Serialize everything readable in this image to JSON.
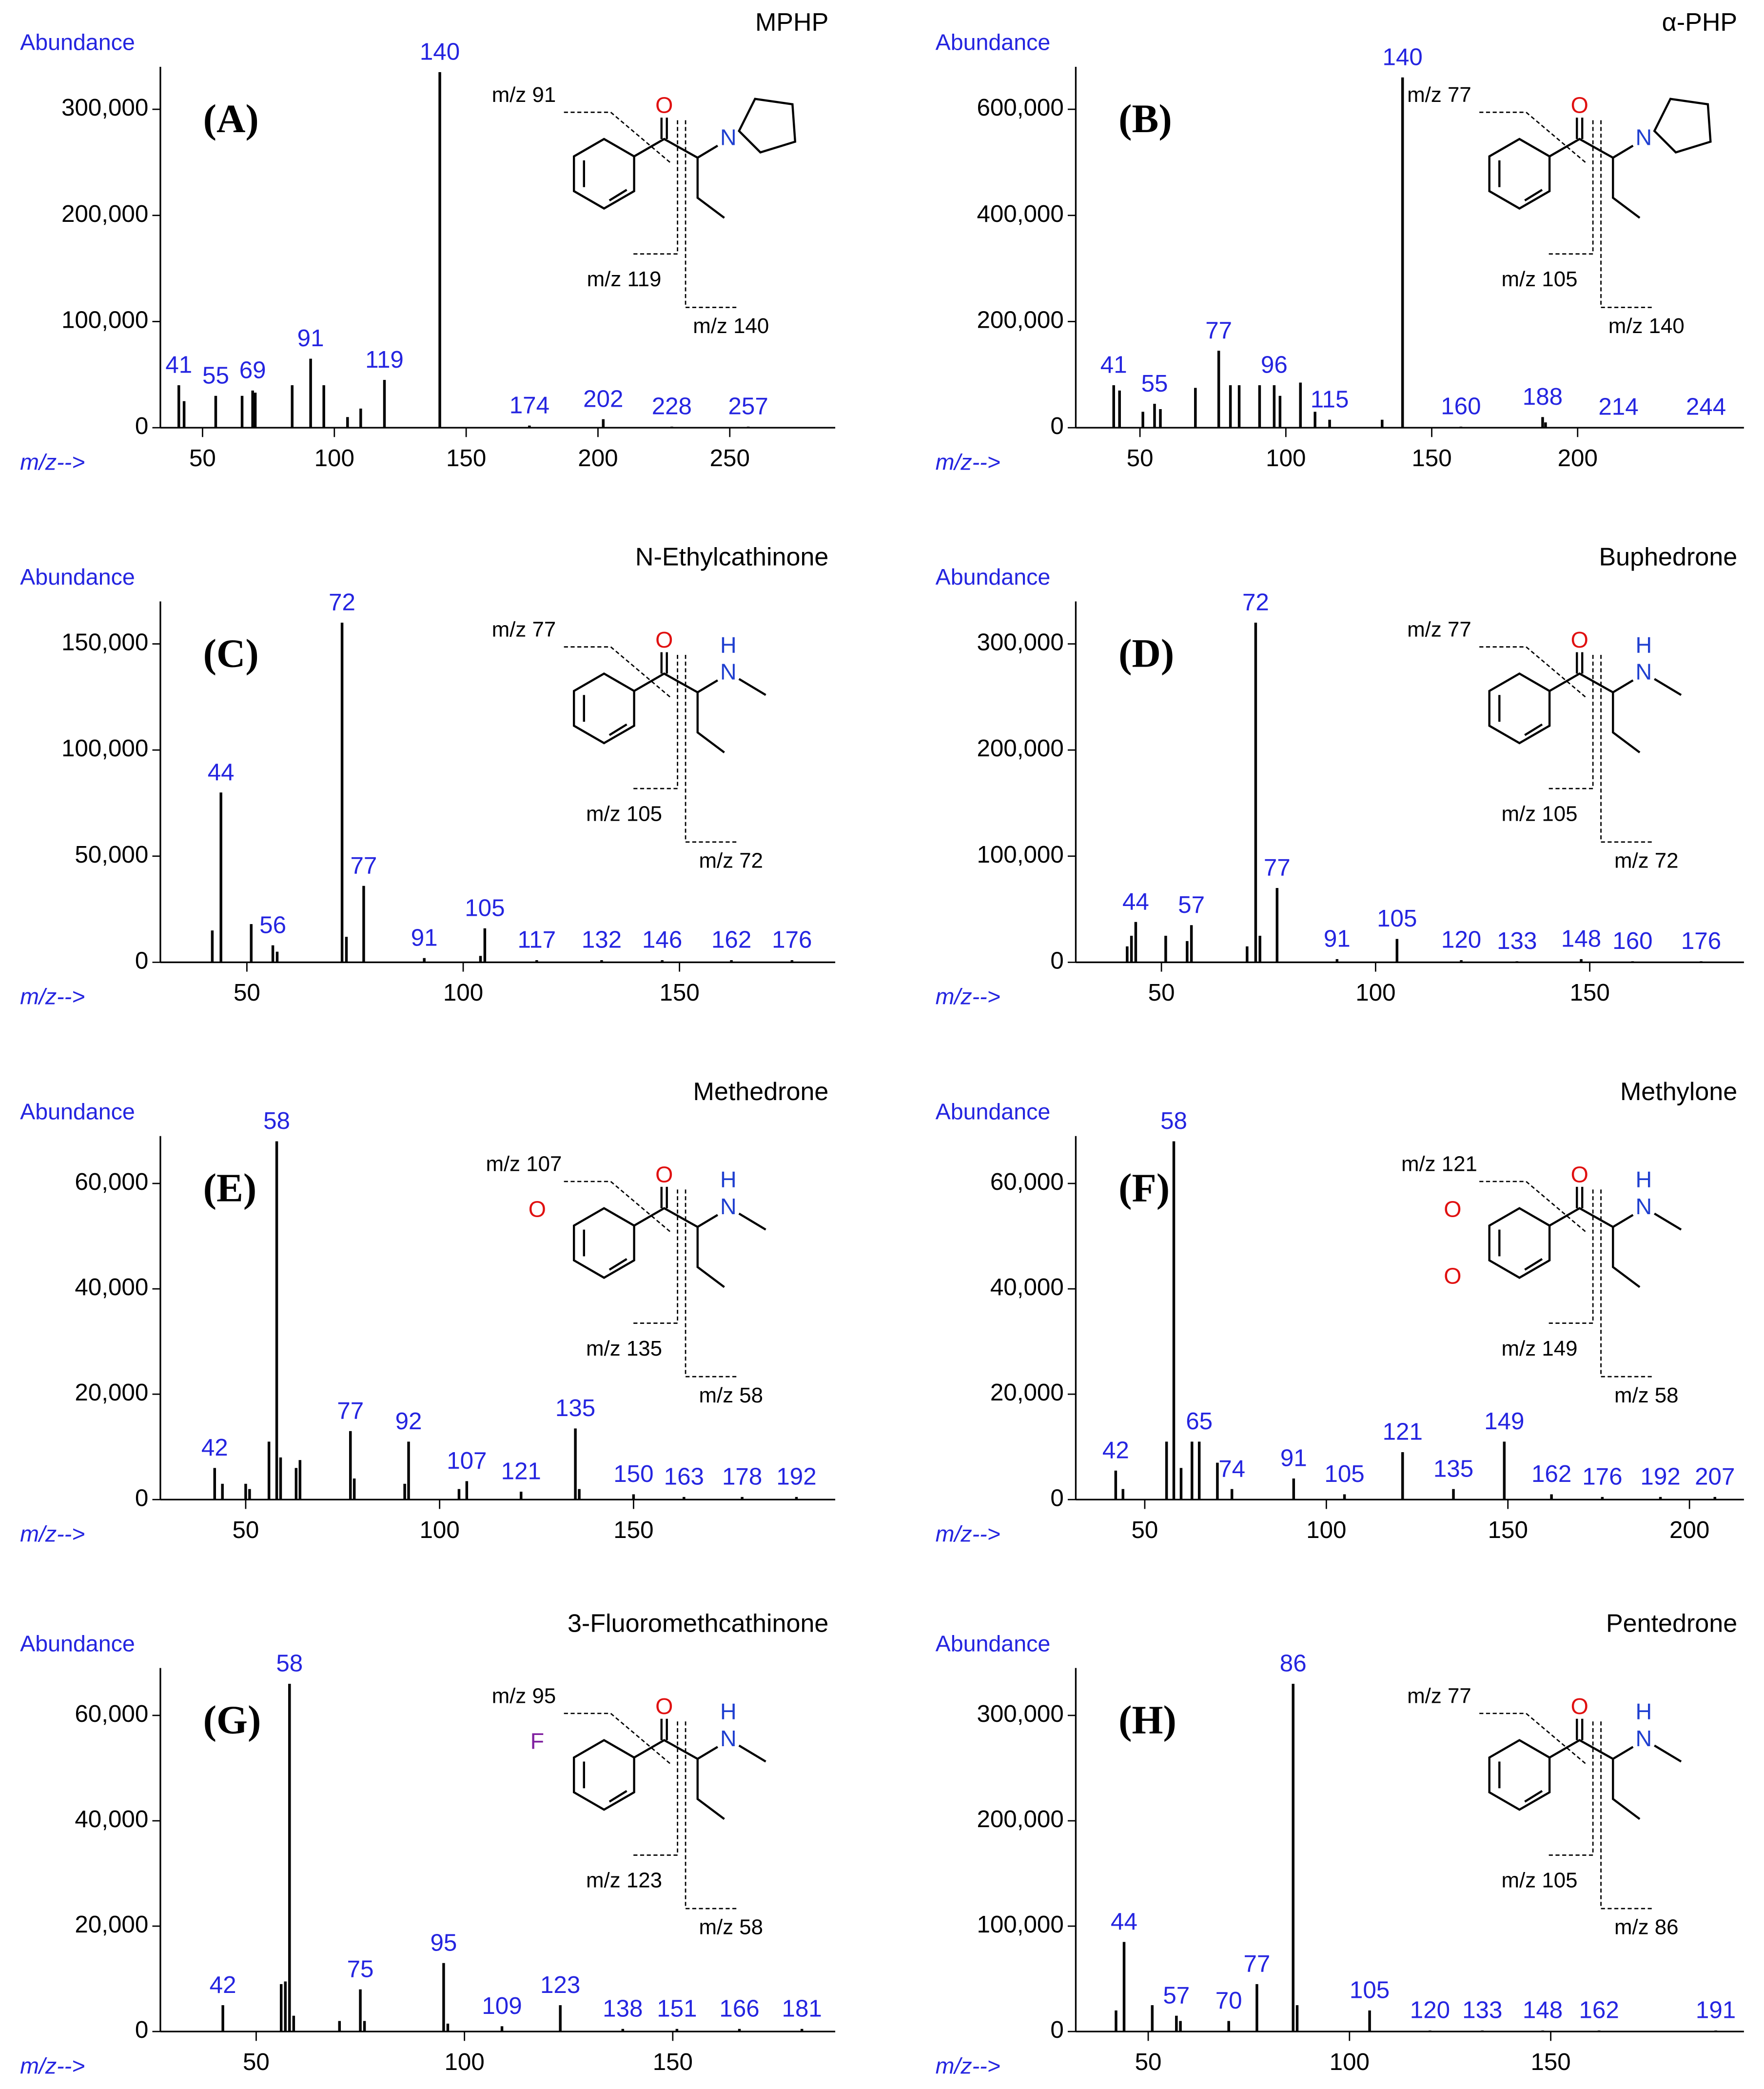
{
  "chart_data": [
    {
      "type": "bar",
      "title": "MPHP",
      "panel_label": "(A)",
      "ylabel": "Abundance",
      "xlabel": "m/z-->",
      "color": "#000000",
      "label_color": "#2424e0",
      "x": [
        41,
        43,
        55,
        65,
        69,
        70,
        84,
        91,
        96,
        105,
        110,
        119,
        140,
        174,
        202,
        228,
        257
      ],
      "values": [
        40000,
        25000,
        30000,
        30000,
        35000,
        33000,
        40000,
        65000,
        40000,
        10000,
        18000,
        45000,
        335000,
        2000,
        8000,
        1000,
        1000
      ],
      "x_labels": [
        41,
        null,
        55,
        null,
        69,
        null,
        null,
        91,
        null,
        null,
        null,
        119,
        140,
        174,
        202,
        228,
        257
      ],
      "xlim": [
        34,
        290
      ],
      "xticks": [
        50,
        100,
        150,
        200,
        250
      ],
      "ylim": [
        0,
        340000
      ],
      "yticks": [
        0,
        {
          "value": 100000,
          "label": "100,000"
        },
        {
          "value": 200000,
          "label": "200,000"
        },
        {
          "value": 300000,
          "label": "300,000"
        }
      ],
      "annotations": [
        "m/z 91",
        "m/z 119",
        "m/z 140"
      ],
      "structure_labels": [
        "O",
        "N"
      ],
      "structure_colors": [
        "#e01010",
        "#1f3fd0"
      ]
    },
    {
      "type": "bar",
      "title": "α-PHP",
      "panel_label": "(B)",
      "ylabel": "Abundance",
      "xlabel": "m/z-->",
      "color": "#000000",
      "label_color": "#2424e0",
      "x": [
        41,
        43,
        51,
        55,
        57,
        69,
        77,
        81,
        84,
        91,
        96,
        98,
        105,
        110,
        115,
        133,
        140,
        160,
        188,
        189,
        214,
        244
      ],
      "values": [
        80000,
        70000,
        30000,
        45000,
        35000,
        75000,
        145000,
        80000,
        80000,
        80000,
        80000,
        60000,
        85000,
        30000,
        15000,
        15000,
        660000,
        2000,
        20000,
        10000,
        1000,
        1000
      ],
      "x_labels": [
        41,
        null,
        null,
        55,
        null,
        null,
        77,
        null,
        null,
        null,
        96,
        null,
        null,
        null,
        115,
        null,
        140,
        160,
        188,
        null,
        214,
        244
      ],
      "xlim": [
        28,
        257
      ],
      "xticks": [
        50,
        100,
        150,
        200
      ],
      "ylim": [
        0,
        680000
      ],
      "yticks": [
        0,
        {
          "value": 200000,
          "label": "200,000"
        },
        {
          "value": 400000,
          "label": "400,000"
        },
        {
          "value": 600000,
          "label": "600,000"
        }
      ],
      "annotations": [
        "m/z 77",
        "m/z 105",
        "m/z 140"
      ],
      "structure_labels": [
        "O",
        "N"
      ],
      "structure_colors": [
        "#e01010",
        "#1f3fd0"
      ]
    },
    {
      "type": "bar",
      "title": "N-Ethylcathinone",
      "panel_label": "(C)",
      "ylabel": "Abundance",
      "xlabel": "m/z-->",
      "color": "#000000",
      "label_color": "#2424e0",
      "x": [
        42,
        44,
        51,
        56,
        57,
        72,
        73,
        77,
        91,
        104,
        105,
        117,
        132,
        146,
        162,
        176
      ],
      "values": [
        15000,
        80000,
        18000,
        8000,
        5000,
        160000,
        12000,
        36000,
        2000,
        3000,
        16000,
        1000,
        1000,
        1000,
        1000,
        1000
      ],
      "x_labels": [
        null,
        44,
        null,
        56,
        null,
        72,
        null,
        77,
        91,
        null,
        105,
        117,
        132,
        146,
        162,
        176
      ],
      "xlim": [
        30,
        186
      ],
      "xticks": [
        50,
        100,
        150
      ],
      "ylim": [
        0,
        170000
      ],
      "yticks": [
        0,
        {
          "value": 50000,
          "label": "50,000"
        },
        {
          "value": 100000,
          "label": "100,000"
        },
        {
          "value": 150000,
          "label": "150,000"
        }
      ],
      "annotations": [
        "m/z 77",
        "m/z 105",
        "m/z 72"
      ],
      "structure_labels": [
        "O",
        "N",
        "H"
      ],
      "structure_colors": [
        "#e01010",
        "#1f3fd0",
        "#1f3fd0"
      ]
    },
    {
      "type": "bar",
      "title": "Buphedrone",
      "panel_label": "(D)",
      "ylabel": "Abundance",
      "xlabel": "m/z-->",
      "color": "#000000",
      "label_color": "#2424e0",
      "x": [
        42,
        43,
        44,
        51,
        56,
        57,
        70,
        72,
        73,
        77,
        91,
        105,
        120,
        133,
        148,
        160,
        176
      ],
      "values": [
        15000,
        25000,
        38000,
        25000,
        20000,
        35000,
        15000,
        320000,
        25000,
        70000,
        3000,
        22000,
        2000,
        1000,
        3000,
        1000,
        1000
      ],
      "x_labels": [
        null,
        null,
        44,
        null,
        null,
        57,
        null,
        72,
        null,
        77,
        91,
        105,
        120,
        133,
        148,
        160,
        176
      ],
      "xlim": [
        30,
        186
      ],
      "xticks": [
        50,
        100,
        150
      ],
      "ylim": [
        0,
        340000
      ],
      "yticks": [
        0,
        {
          "value": 100000,
          "label": "100,000"
        },
        {
          "value": 200000,
          "label": "200,000"
        },
        {
          "value": 300000,
          "label": "300,000"
        }
      ],
      "annotations": [
        "m/z 77",
        "m/z 105",
        "m/z 72"
      ],
      "structure_labels": [
        "O",
        "N",
        "H"
      ],
      "structure_colors": [
        "#e01010",
        "#1f3fd0",
        "#1f3fd0"
      ]
    },
    {
      "type": "bar",
      "title": "Methedrone",
      "panel_label": "(E)",
      "ylabel": "Abundance",
      "xlabel": "m/z-->",
      "color": "#000000",
      "label_color": "#2424e0",
      "x": [
        42,
        44,
        50,
        51,
        56,
        58,
        59,
        63,
        64,
        77,
        78,
        91,
        92,
        105,
        107,
        121,
        135,
        136,
        150,
        163,
        178,
        192
      ],
      "values": [
        6000,
        3000,
        3000,
        2000,
        11000,
        68000,
        8000,
        6000,
        7500,
        13000,
        4000,
        3000,
        11000,
        2000,
        3500,
        1500,
        13500,
        2000,
        1000,
        500,
        500,
        500
      ],
      "x_labels": [
        42,
        null,
        null,
        null,
        null,
        58,
        null,
        null,
        null,
        77,
        null,
        null,
        92,
        null,
        107,
        121,
        135,
        null,
        150,
        163,
        178,
        192
      ],
      "xlim": [
        28,
        202
      ],
      "xticks": [
        50,
        100,
        150
      ],
      "ylim": [
        0,
        69000
      ],
      "yticks": [
        0,
        {
          "value": 20000,
          "label": "20,000"
        },
        {
          "value": 40000,
          "label": "40,000"
        },
        {
          "value": 60000,
          "label": "60,000"
        }
      ],
      "annotations": [
        "m/z 107",
        "m/z 135",
        "m/z 58"
      ],
      "structure_labels": [
        "O",
        "N",
        "H",
        "O"
      ],
      "structure_colors": [
        "#e01010",
        "#1f3fd0",
        "#1f3fd0",
        "#e01010"
      ]
    },
    {
      "type": "bar",
      "title": "Methylone",
      "panel_label": "(F)",
      "ylabel": "Abundance",
      "xlabel": "m/z-->",
      "color": "#000000",
      "label_color": "#2424e0",
      "x": [
        42,
        44,
        56,
        58,
        60,
        63,
        65,
        70,
        74,
        91,
        105,
        121,
        135,
        149,
        162,
        176,
        192,
        207
      ],
      "values": [
        5500,
        2000,
        11000,
        68000,
        6000,
        11000,
        11000,
        7000,
        2000,
        4000,
        1000,
        9000,
        2000,
        11000,
        1000,
        500,
        500,
        500
      ],
      "x_labels": [
        42,
        null,
        null,
        58,
        null,
        null,
        65,
        null,
        74,
        91,
        105,
        121,
        135,
        149,
        162,
        176,
        192,
        207
      ],
      "xlim": [
        31,
        215
      ],
      "xticks": [
        50,
        100,
        150,
        200
      ],
      "ylim": [
        0,
        69000
      ],
      "yticks": [
        0,
        {
          "value": 20000,
          "label": "20,000"
        },
        {
          "value": 40000,
          "label": "40,000"
        },
        {
          "value": 60000,
          "label": "60,000"
        }
      ],
      "annotations": [
        "m/z 121",
        "m/z 149",
        "m/z 58"
      ],
      "structure_labels": [
        "O",
        "N",
        "H",
        "O",
        "O"
      ],
      "structure_colors": [
        "#e01010",
        "#1f3fd0",
        "#1f3fd0",
        "#e01010",
        "#e01010"
      ]
    },
    {
      "type": "bar",
      "title": "3-Fluoromethcathinone",
      "panel_label": "(G)",
      "ylabel": "Abundance",
      "xlabel": "m/z-->",
      "color": "#000000",
      "label_color": "#2424e0",
      "x": [
        42,
        56,
        57,
        58,
        59,
        70,
        75,
        76,
        95,
        96,
        109,
        123,
        138,
        151,
        166,
        181
      ],
      "values": [
        5000,
        9000,
        9500,
        66000,
        3000,
        2000,
        8000,
        2000,
        13000,
        1500,
        1000,
        5000,
        500,
        500,
        500,
        500
      ],
      "x_labels": [
        42,
        null,
        null,
        58,
        null,
        null,
        75,
        null,
        95,
        null,
        109,
        123,
        138,
        151,
        166,
        181
      ],
      "xlim": [
        27,
        189
      ],
      "xticks": [
        50,
        100,
        150
      ],
      "ylim": [
        0,
        69000
      ],
      "yticks": [
        0,
        {
          "value": 20000,
          "label": "20,000"
        },
        {
          "value": 40000,
          "label": "40,000"
        },
        {
          "value": 60000,
          "label": "60,000"
        }
      ],
      "annotations": [
        "m/z 95",
        "m/z 123",
        "m/z 58"
      ],
      "structure_labels": [
        "O",
        "N",
        "H",
        "F"
      ],
      "structure_colors": [
        "#e01010",
        "#1f3fd0",
        "#1f3fd0",
        "#8020a0"
      ]
    },
    {
      "type": "bar",
      "title": "Pentedrone",
      "panel_label": "(H)",
      "ylabel": "Abundance",
      "xlabel": "m/z-->",
      "color": "#000000",
      "label_color": "#2424e0",
      "x": [
        42,
        44,
        51,
        57,
        58,
        70,
        77,
        86,
        87,
        105,
        120,
        133,
        148,
        162,
        191
      ],
      "values": [
        20000,
        85000,
        25000,
        15000,
        10000,
        10000,
        45000,
        330000,
        25000,
        20000,
        1000,
        1000,
        1000,
        1000,
        1000
      ],
      "x_labels": [
        null,
        44,
        null,
        57,
        null,
        70,
        77,
        86,
        null,
        105,
        120,
        133,
        148,
        162,
        191
      ],
      "xlim": [
        32,
        198
      ],
      "xticks": [
        50,
        100,
        150
      ],
      "ylim": [
        0,
        345000
      ],
      "yticks": [
        0,
        {
          "value": 100000,
          "label": "100,000"
        },
        {
          "value": 200000,
          "label": "200,000"
        },
        {
          "value": 300000,
          "label": "300,000"
        }
      ],
      "annotations": [
        "m/z 77",
        "m/z 105",
        "m/z 86"
      ],
      "structure_labels": [
        "O",
        "N",
        "H"
      ],
      "structure_colors": [
        "#e01010",
        "#1f3fd0",
        "#1f3fd0"
      ]
    }
  ]
}
